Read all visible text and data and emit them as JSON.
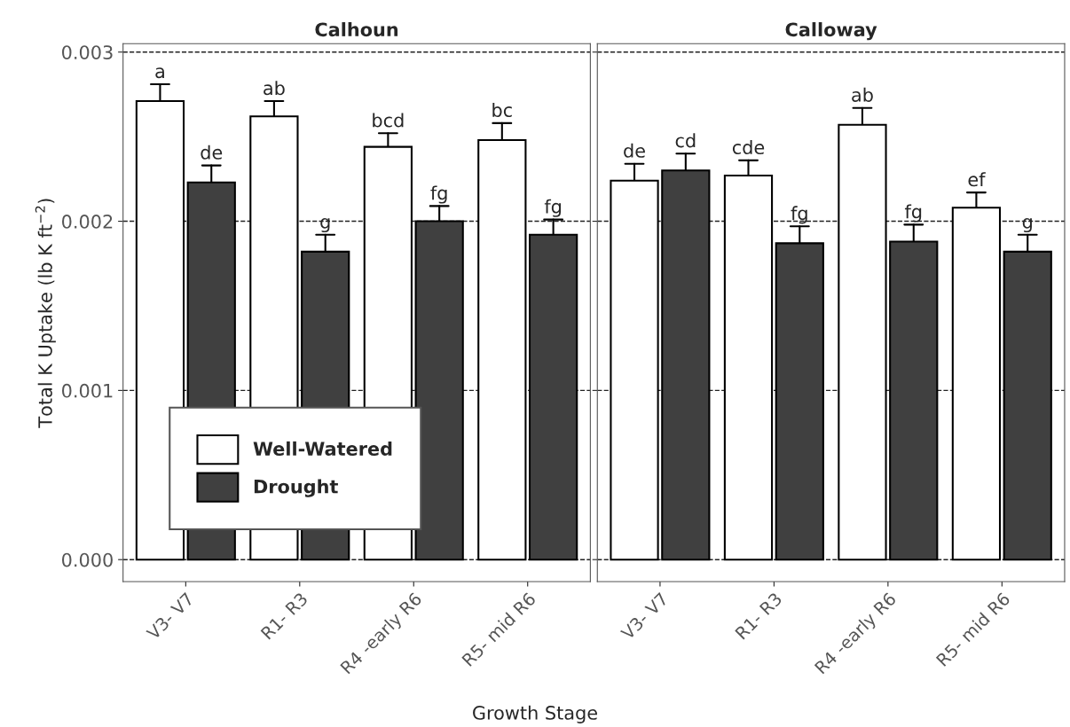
{
  "chart_data": [
    {
      "type": "bar",
      "title": "Calhoun",
      "xlabel": "Growth Stage",
      "ylabel": "Total K Uptake (lb K ft$^{−2}$)",
      "categories": [
        "V3- V7",
        "R1- R3",
        "R4 -early R6",
        "R5- mid R6"
      ],
      "series": [
        {
          "name": "Well-Watered",
          "color": "#ffffff",
          "values": [
            0.00271,
            0.00262,
            0.00244,
            0.00248
          ],
          "errors": [
            [
              0.00271,
              0.00281
            ],
            [
              0.00262,
              0.00271
            ],
            [
              0.00244,
              0.00252
            ],
            [
              0.00248,
              0.00258
            ]
          ]
        },
        {
          "name": "Drought",
          "color": "#404040",
          "values": [
            0.00223,
            0.00182,
            0.002,
            0.00192
          ],
          "errors": [
            [
              0.00223,
              0.00233
            ],
            [
              0.00182,
              0.00192
            ],
            [
              0.002,
              0.00209
            ],
            [
              0.00192,
              0.00201
            ]
          ]
        }
      ],
      "annotations": [
        "a",
        "ab",
        "bcd",
        "bc",
        "de",
        "g",
        "fg",
        "fg"
      ],
      "ylim": [
        -0.00013,
        0.00305
      ],
      "yticks": [
        {
          "value": 0,
          "label": "0.000"
        },
        {
          "value": 0.001,
          "label": "0.001"
        },
        {
          "value": 0.002,
          "label": "0.002"
        },
        {
          "value": 0.003,
          "label": "0.003"
        }
      ],
      "grid": "y",
      "legend": "bottom left"
    },
    {
      "type": "bar",
      "title": "Calloway",
      "categories": [
        "V3- V7",
        "R1- R3",
        "R4 -early R6",
        "R5- mid R6"
      ],
      "series": [
        {
          "color": "#ffffff",
          "values": [
            0.00224,
            0.00227,
            0.00257,
            0.00208
          ],
          "errors": [
            [
              0.00224,
              0.00234
            ],
            [
              0.00227,
              0.00236
            ],
            [
              0.00257,
              0.00267
            ],
            [
              0.00208,
              0.00217
            ]
          ]
        },
        {
          "color": "#404040",
          "values": [
            0.0023,
            0.00187,
            0.00188,
            0.00182
          ],
          "errors": [
            [
              0.0023,
              0.0024
            ],
            [
              0.00187,
              0.00197
            ],
            [
              0.00188,
              0.00198
            ],
            [
              0.00182,
              0.00192
            ]
          ]
        }
      ],
      "annotations": [
        "de",
        "cde",
        "ab",
        "ef",
        "cd",
        "fg",
        "fg",
        "g"
      ],
      "ylim": [
        -0.00013,
        0.00305
      ],
      "yticks": [
        {
          "value": 0,
          "label": null
        },
        {
          "value": 0.001,
          "label": null
        },
        {
          "value": 0.002,
          "label": null
        },
        {
          "value": 0.003,
          "label": null
        }
      ],
      "grid": "y",
      "tick_labels": "x"
    }
  ]
}
